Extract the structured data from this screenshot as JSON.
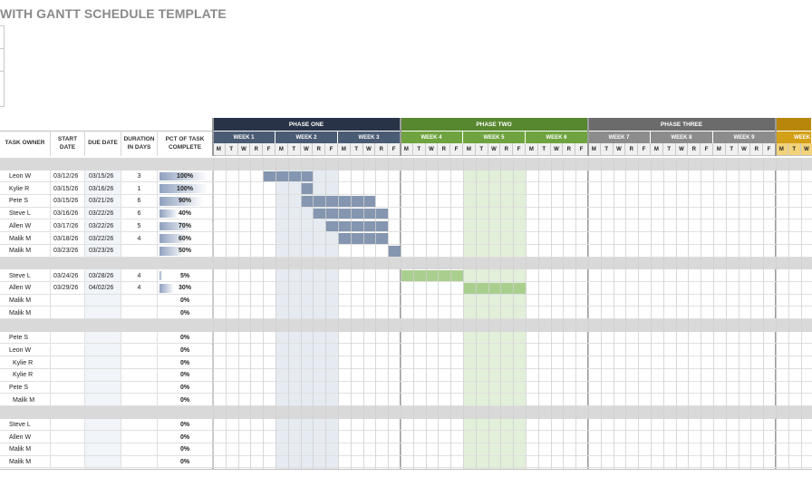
{
  "title": "WITH GANTT SCHEDULE TEMPLATE",
  "columns": {
    "owner": "TASK OWNER",
    "start": "START DATE",
    "due": "DUE DATE",
    "duration": "DURATION IN DAYS",
    "pct": "PCT OF TASK COMPLETE"
  },
  "days": [
    "M",
    "T",
    "W",
    "R",
    "F"
  ],
  "phases": [
    {
      "name": "PHASE ONE",
      "color": "#283347",
      "week_color": "#4a5b74",
      "weeks": [
        "WEEK 1",
        "WEEK 2",
        "WEEK 3"
      ]
    },
    {
      "name": "PHASE TWO",
      "color": "#57872f",
      "week_color": "#6fa33f",
      "weeks": [
        "WEEK 4",
        "WEEK 5",
        "WEEK 6"
      ]
    },
    {
      "name": "PHASE THREE",
      "color": "#6b6b6b",
      "week_color": "#8c8c8c",
      "weeks": [
        "WEEK 7",
        "WEEK 8",
        "WEEK 9"
      ]
    },
    {
      "name": "",
      "color": "#b8860b",
      "week_color": "#d4a017",
      "weeks": [
        "WEEK"
      ]
    }
  ],
  "rows": [
    {
      "type": "section"
    },
    {
      "type": "task",
      "owner": "Leon W",
      "start": "03/12/26",
      "due": "03/15/26",
      "duration": "3",
      "pct": "100%",
      "pct_value": 1.0,
      "bar_start": 4,
      "bar_len": 4,
      "bar_color": "#8496b0"
    },
    {
      "type": "task",
      "owner": "Kylie R",
      "start": "03/15/26",
      "due": "03/16/26",
      "duration": "1",
      "pct": "100%",
      "pct_value": 1.0,
      "bar_start": 7,
      "bar_len": 1,
      "bar_color": "#8496b0"
    },
    {
      "type": "task",
      "owner": "Pete S",
      "start": "03/15/26",
      "due": "03/21/26",
      "duration": "6",
      "pct": "90%",
      "pct_value": 0.9,
      "bar_start": 7,
      "bar_len": 6,
      "bar_color": "#8496b0"
    },
    {
      "type": "task",
      "owner": "Steve L",
      "start": "03/16/26",
      "due": "03/22/26",
      "duration": "6",
      "pct": "40%",
      "pct_value": 0.4,
      "bar_start": 8,
      "bar_len": 6,
      "bar_color": "#8496b0"
    },
    {
      "type": "task",
      "owner": "Allen W",
      "start": "03/17/26",
      "due": "03/22/26",
      "duration": "5",
      "pct": "70%",
      "pct_value": 0.7,
      "bar_start": 9,
      "bar_len": 5,
      "bar_color": "#8496b0"
    },
    {
      "type": "task",
      "owner": "Malik M",
      "start": "03/18/26",
      "due": "03/22/26",
      "duration": "4",
      "pct": "60%",
      "pct_value": 0.6,
      "bar_start": 10,
      "bar_len": 4,
      "bar_color": "#8496b0"
    },
    {
      "type": "task",
      "owner": "Malik M",
      "start": "03/23/26",
      "due": "03/23/26",
      "duration": "",
      "pct": "50%",
      "pct_value": 0.5,
      "bar_start": 14,
      "bar_len": 1,
      "bar_color": "#8496b0"
    },
    {
      "type": "section"
    },
    {
      "type": "task",
      "owner": "Steve L",
      "start": "03/24/26",
      "due": "03/28/26",
      "duration": "4",
      "pct": "5%",
      "pct_value": 0.05,
      "bar_start": 15,
      "bar_len": 5,
      "bar_color": "#a9cf8e"
    },
    {
      "type": "task",
      "owner": "Allen W",
      "start": "03/29/26",
      "due": "04/02/26",
      "duration": "4",
      "pct": "30%",
      "pct_value": 0.3,
      "bar_start": 20,
      "bar_len": 5,
      "bar_color": "#a9cf8e"
    },
    {
      "type": "task",
      "owner": "Malik M",
      "start": "",
      "due": "",
      "duration": "",
      "pct": "0%",
      "pct_value": 0
    },
    {
      "type": "task",
      "owner": "Malik M",
      "start": "",
      "due": "",
      "duration": "",
      "pct": "0%",
      "pct_value": 0
    },
    {
      "type": "section"
    },
    {
      "type": "task",
      "owner": "Pete S",
      "start": "",
      "due": "",
      "duration": "",
      "pct": "0%",
      "pct_value": 0
    },
    {
      "type": "task",
      "owner": "Leon W",
      "start": "",
      "due": "",
      "duration": "",
      "pct": "0%",
      "pct_value": 0
    },
    {
      "type": "task",
      "owner": "Kylie R",
      "start": "",
      "due": "",
      "duration": "",
      "pct": "0%",
      "pct_value": 0,
      "indent": true
    },
    {
      "type": "task",
      "owner": "Kylie R",
      "start": "",
      "due": "",
      "duration": "",
      "pct": "0%",
      "pct_value": 0,
      "indent": true
    },
    {
      "type": "task",
      "owner": "Pete S",
      "start": "",
      "due": "",
      "duration": "",
      "pct": "0%",
      "pct_value": 0
    },
    {
      "type": "task",
      "owner": "Malik M",
      "start": "",
      "due": "",
      "duration": "",
      "pct": "0%",
      "pct_value": 0,
      "indent": true
    },
    {
      "type": "section"
    },
    {
      "type": "task",
      "owner": "Steve L",
      "start": "",
      "due": "",
      "duration": "",
      "pct": "0%",
      "pct_value": 0
    },
    {
      "type": "task",
      "owner": "Allen W",
      "start": "",
      "due": "",
      "duration": "",
      "pct": "0%",
      "pct_value": 0
    },
    {
      "type": "task",
      "owner": "Malik M",
      "start": "",
      "due": "",
      "duration": "",
      "pct": "0%",
      "pct_value": 0
    },
    {
      "type": "task",
      "owner": "Malik M",
      "start": "",
      "due": "",
      "duration": "",
      "pct": "0%",
      "pct_value": 0
    }
  ]
}
